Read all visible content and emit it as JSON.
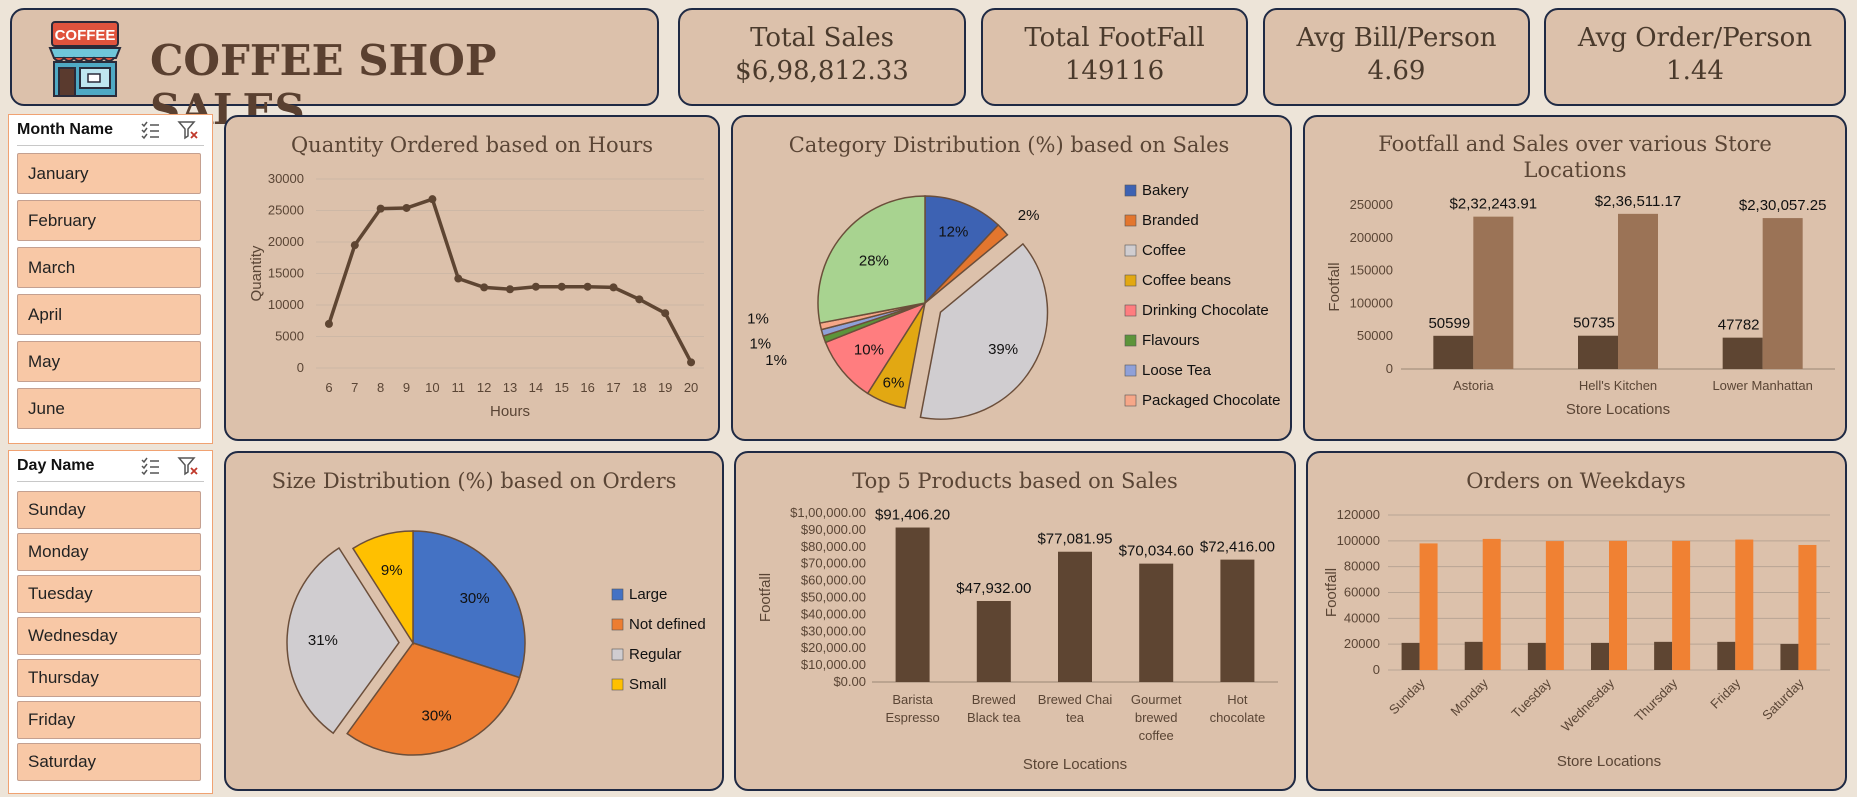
{
  "header": {
    "logo_text": "COFFEE",
    "title": "COFFEE SHOP SALES"
  },
  "kpis": [
    {
      "title": "Total Sales",
      "value": "$6,98,812.33"
    },
    {
      "title": "Total FootFall",
      "value": "149116"
    },
    {
      "title": "Avg Bill/Person",
      "value": "4.69"
    },
    {
      "title": "Avg Order/Person",
      "value": "1.44"
    }
  ],
  "slicers": {
    "month": {
      "title": "Month Name",
      "items": [
        "January",
        "February",
        "March",
        "April",
        "May",
        "June"
      ]
    },
    "day": {
      "title": "Day Name",
      "items": [
        "Sunday",
        "Monday",
        "Tuesday",
        "Wednesday",
        "Thursday",
        "Friday",
        "Saturday"
      ]
    }
  },
  "colors": {
    "dark_brown": "#5e4532",
    "light_brown": "#9b7356",
    "orange": "#f08133",
    "card": "#dcc1ab"
  },
  "chart_data": [
    {
      "id": "hours",
      "type": "line",
      "title": "Quantity Ordered based on Hours",
      "xlabel": "Hours",
      "ylabel": "Quantity",
      "x": [
        6,
        7,
        8,
        9,
        10,
        11,
        12,
        13,
        14,
        15,
        16,
        17,
        18,
        19,
        20
      ],
      "values": [
        7000,
        19500,
        25300,
        25400,
        26800,
        14200,
        12800,
        12500,
        12900,
        12900,
        12900,
        12800,
        10900,
        8700,
        900
      ],
      "ylim": [
        0,
        30000
      ],
      "yticks": [
        0,
        5000,
        10000,
        15000,
        20000,
        25000,
        30000
      ],
      "color": "#5e4532",
      "grid": true
    },
    {
      "id": "category",
      "type": "pie",
      "title": "Category Distribution (%) based on Sales",
      "labels": [
        "Bakery",
        "Branded",
        "Coffee",
        "Coffee beans",
        "Drinking Chocolate",
        "Flavours",
        "Loose Tea",
        "Packaged Chocolate"
      ],
      "values": [
        12,
        2,
        39,
        6,
        10,
        1,
        1,
        1
      ],
      "slice_labels": [
        "12%",
        "2%",
        "39%",
        "6%",
        "10%",
        "1%",
        "1%",
        "1%"
      ],
      "other_share": 28,
      "other_label": "28%",
      "colors": [
        "#3d62b3",
        "#e3762e",
        "#d0cdd0",
        "#e2a812",
        "#ff7d7f",
        "#5c943a",
        "#8fa0d8",
        "#f7a788"
      ],
      "other_color": "#a8d390",
      "legend": "right"
    },
    {
      "id": "stores",
      "type": "bar",
      "title": "Footfall and Sales over various Store Locations",
      "xlabel": "Store Locations",
      "ylabel": "Footfall",
      "categories": [
        "Astoria",
        "Hell's Kitchen",
        "Lower Manhattan"
      ],
      "series": [
        {
          "values": [
            50599,
            50735,
            47782
          ],
          "labels": [
            "50599",
            "50735",
            "47782"
          ],
          "color": "#5e4532"
        },
        {
          "values": [
            232243.91,
            236511.17,
            230057.25
          ],
          "labels": [
            "$2,32,243.91",
            "$2,36,511.17",
            "$2,30,057.25"
          ],
          "color": "#9b7356"
        }
      ],
      "ylim": [
        0,
        250000
      ],
      "yticks": [
        0,
        50000,
        100000,
        150000,
        200000,
        250000
      ]
    },
    {
      "id": "size",
      "type": "pie",
      "title": "Size Distribution (%) based on Orders",
      "labels": [
        "Large",
        "Not defined",
        "Regular",
        "Small"
      ],
      "values": [
        30,
        30,
        31,
        9
      ],
      "slice_labels": [
        "30%",
        "30%",
        "31%",
        "9%"
      ],
      "colors": [
        "#4472c4",
        "#ed7d31",
        "#d0cdd0",
        "#ffc000"
      ],
      "legend": "right"
    },
    {
      "id": "products",
      "type": "bar",
      "title": "Top 5 Products based on Sales",
      "xlabel": "Store Locations",
      "ylabel": "Footfall",
      "categories": [
        [
          "Barista",
          "Espresso"
        ],
        [
          "Brewed",
          "Black tea"
        ],
        [
          "Brewed Chai",
          "tea"
        ],
        [
          "Gourmet",
          "brewed",
          "coffee"
        ],
        [
          "Hot",
          "chocolate"
        ]
      ],
      "values": [
        91406.2,
        47932.0,
        77081.95,
        70034.6,
        72416.0
      ],
      "labels": [
        "$91,406.20",
        "$47,932.00",
        "$77,081.95",
        "$70,034.60",
        "$72,416.00"
      ],
      "ylim": [
        0,
        100000
      ],
      "yticks": [
        "$0.00",
        "$10,000.00",
        "$20,000.00",
        "$30,000.00",
        "$40,000.00",
        "$50,000.00",
        "$60,000.00",
        "$70,000.00",
        "$80,000.00",
        "$90,000.00",
        "$1,00,000.00"
      ],
      "color": "#5e4532"
    },
    {
      "id": "weekdays",
      "type": "bar",
      "title": "Orders on Weekdays",
      "xlabel": "Store Locations",
      "ylabel": "Footfall",
      "categories": [
        "Sunday",
        "Monday",
        "Tuesday",
        "Wednesday",
        "Thursday",
        "Friday",
        "Saturday"
      ],
      "series": [
        {
          "values": [
            21000,
            21800,
            21000,
            21000,
            21800,
            21800,
            20200
          ],
          "color": "#5e4532"
        },
        {
          "values": [
            98000,
            101500,
            99800,
            100000,
            100000,
            101000,
            96800
          ],
          "color": "#f08133"
        }
      ],
      "ylim": [
        0,
        120000
      ],
      "yticks": [
        0,
        20000,
        40000,
        60000,
        80000,
        100000,
        120000
      ]
    }
  ]
}
